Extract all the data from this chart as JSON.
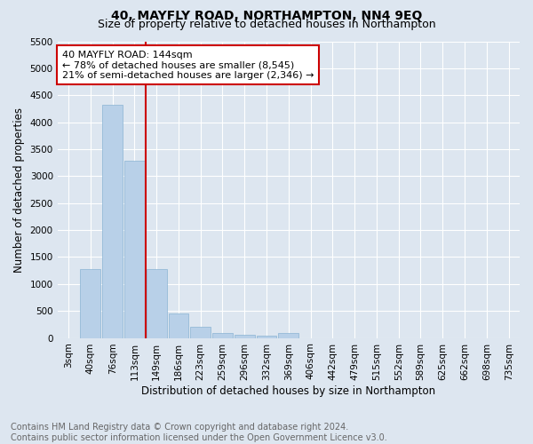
{
  "title": "40, MAYFLY ROAD, NORTHAMPTON, NN4 9EQ",
  "subtitle": "Size of property relative to detached houses in Northampton",
  "xlabel": "Distribution of detached houses by size in Northampton",
  "ylabel": "Number of detached properties",
  "bar_labels": [
    "3sqm",
    "40sqm",
    "76sqm",
    "113sqm",
    "149sqm",
    "186sqm",
    "223sqm",
    "259sqm",
    "296sqm",
    "332sqm",
    "369sqm",
    "406sqm",
    "442sqm",
    "479sqm",
    "515sqm",
    "552sqm",
    "589sqm",
    "625sqm",
    "662sqm",
    "698sqm",
    "735sqm"
  ],
  "bar_values": [
    0,
    1270,
    4320,
    3280,
    1270,
    460,
    215,
    95,
    65,
    50,
    95,
    0,
    0,
    0,
    0,
    0,
    0,
    0,
    0,
    0,
    0
  ],
  "bar_color": "#b8d0e8",
  "bar_edge_color": "#8ab4d4",
  "reference_line_label": "40 MAYFLY ROAD: 144sqm",
  "annotation_line1": "← 78% of detached houses are smaller (8,545)",
  "annotation_line2": "21% of semi-detached houses are larger (2,346) →",
  "annotation_box_color": "#cc0000",
  "ylim": [
    0,
    5500
  ],
  "yticks": [
    0,
    500,
    1000,
    1500,
    2000,
    2500,
    3000,
    3500,
    4000,
    4500,
    5000,
    5500
  ],
  "footer_line1": "Contains HM Land Registry data © Crown copyright and database right 2024.",
  "footer_line2": "Contains public sector information licensed under the Open Government Licence v3.0.",
  "bg_color": "#dde6f0",
  "plot_bg_color": "#dde6f0",
  "grid_color": "#ffffff",
  "title_fontsize": 10,
  "subtitle_fontsize": 9,
  "xlabel_fontsize": 8.5,
  "ylabel_fontsize": 8.5,
  "tick_fontsize": 7.5,
  "footer_fontsize": 7,
  "annot_fontsize": 8
}
